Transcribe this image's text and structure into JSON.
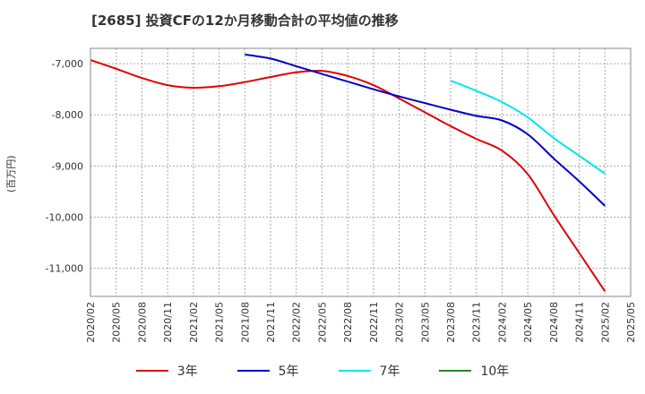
{
  "chart_data": {
    "type": "line",
    "title": "[2685]  投資CFの12か月移動合計の平均値の推移",
    "xlabel": "",
    "ylabel": "(百万円)",
    "ylim": [
      -11550,
      -6700
    ],
    "yticks": [
      -7000,
      -8000,
      -9000,
      -10000,
      -11000
    ],
    "ytick_labels": [
      "-7,000",
      "-8,000",
      "-9,000",
      "-10,000",
      "-11,000"
    ],
    "xticks": [
      "2020/02",
      "2020/05",
      "2020/08",
      "2020/11",
      "2021/02",
      "2021/05",
      "2021/08",
      "2021/11",
      "2022/02",
      "2022/05",
      "2022/08",
      "2022/11",
      "2023/02",
      "2023/05",
      "2023/08",
      "2023/11",
      "2024/02",
      "2024/05",
      "2024/08",
      "2024/11",
      "2025/02",
      "2025/05"
    ],
    "grid": true,
    "legend_position": "bottom",
    "series": [
      {
        "name": "3年",
        "color": "#e00000",
        "points": [
          [
            "2020/02",
            -6930
          ],
          [
            "2020/05",
            -7100
          ],
          [
            "2020/08",
            -7280
          ],
          [
            "2020/11",
            -7420
          ],
          [
            "2021/02",
            -7470
          ],
          [
            "2021/05",
            -7440
          ],
          [
            "2021/08",
            -7360
          ],
          [
            "2021/11",
            -7260
          ],
          [
            "2022/02",
            -7170
          ],
          [
            "2022/05",
            -7140
          ],
          [
            "2022/08",
            -7240
          ],
          [
            "2022/11",
            -7420
          ],
          [
            "2023/02",
            -7680
          ],
          [
            "2023/05",
            -7950
          ],
          [
            "2023/08",
            -8220
          ],
          [
            "2023/11",
            -8470
          ],
          [
            "2024/02",
            -8700
          ],
          [
            "2024/05",
            -9160
          ],
          [
            "2024/08",
            -9950
          ],
          [
            "2024/11",
            -10700
          ],
          [
            "2025/02",
            -11450
          ]
        ]
      },
      {
        "name": "5年",
        "color": "#0000c8",
        "points": [
          [
            "2021/08",
            -6820
          ],
          [
            "2021/11",
            -6900
          ],
          [
            "2022/02",
            -7050
          ],
          [
            "2022/05",
            -7200
          ],
          [
            "2022/08",
            -7350
          ],
          [
            "2022/11",
            -7500
          ],
          [
            "2023/02",
            -7640
          ],
          [
            "2023/05",
            -7770
          ],
          [
            "2023/08",
            -7900
          ],
          [
            "2023/11",
            -8020
          ],
          [
            "2024/02",
            -8110
          ],
          [
            "2024/05",
            -8380
          ],
          [
            "2024/08",
            -8850
          ],
          [
            "2024/11",
            -9300
          ],
          [
            "2025/02",
            -9780
          ]
        ]
      },
      {
        "name": "7年",
        "color": "#00e5ee",
        "points": [
          [
            "2023/08",
            -7330
          ],
          [
            "2023/11",
            -7530
          ],
          [
            "2024/02",
            -7750
          ],
          [
            "2024/05",
            -8050
          ],
          [
            "2024/08",
            -8450
          ],
          [
            "2024/11",
            -8800
          ],
          [
            "2025/02",
            -9150
          ]
        ]
      },
      {
        "name": "10年",
        "color": "#228b22",
        "points": []
      }
    ]
  }
}
